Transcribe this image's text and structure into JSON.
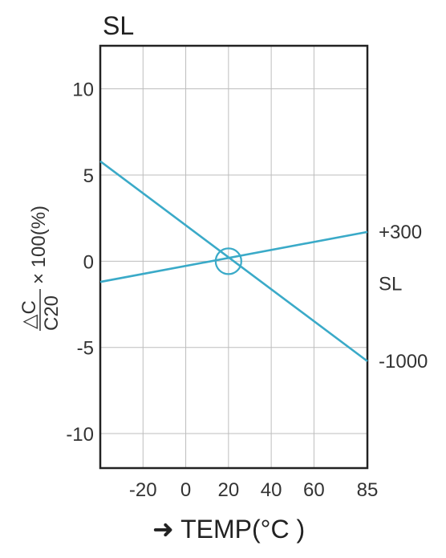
{
  "chart_data": {
    "type": "line",
    "title": "SL",
    "ylabel_numerator": "△C",
    "ylabel_denominator": "C20",
    "ylabel_suffix": "× 100(%)",
    "xlabel_arrow": "➜",
    "xlabel": "TEMP(°C )",
    "x_tick_labels": [
      "-20",
      "0",
      "20",
      "40",
      "60",
      "85"
    ],
    "x_tick_values": [
      -20,
      0,
      20,
      40,
      60,
      85
    ],
    "y_tick_labels": [
      "10",
      "5",
      "0",
      "-5",
      "-10"
    ],
    "y_tick_values": [
      10,
      5,
      0,
      -5,
      -10
    ],
    "xlim": [
      -40,
      85
    ],
    "ylim": [
      -12,
      12.5
    ],
    "grid": true,
    "reference_circle": {
      "x": 20,
      "y": 0
    },
    "series": [
      {
        "name": "+300",
        "x": [
          -40,
          85
        ],
        "y": [
          -1.2,
          1.7
        ]
      },
      {
        "name": "-1000",
        "x": [
          -40,
          85
        ],
        "y": [
          5.8,
          -5.8
        ]
      }
    ],
    "side_label": "SL",
    "line_color": "#3aaac8",
    "grid_color": "#bdbdbd"
  }
}
